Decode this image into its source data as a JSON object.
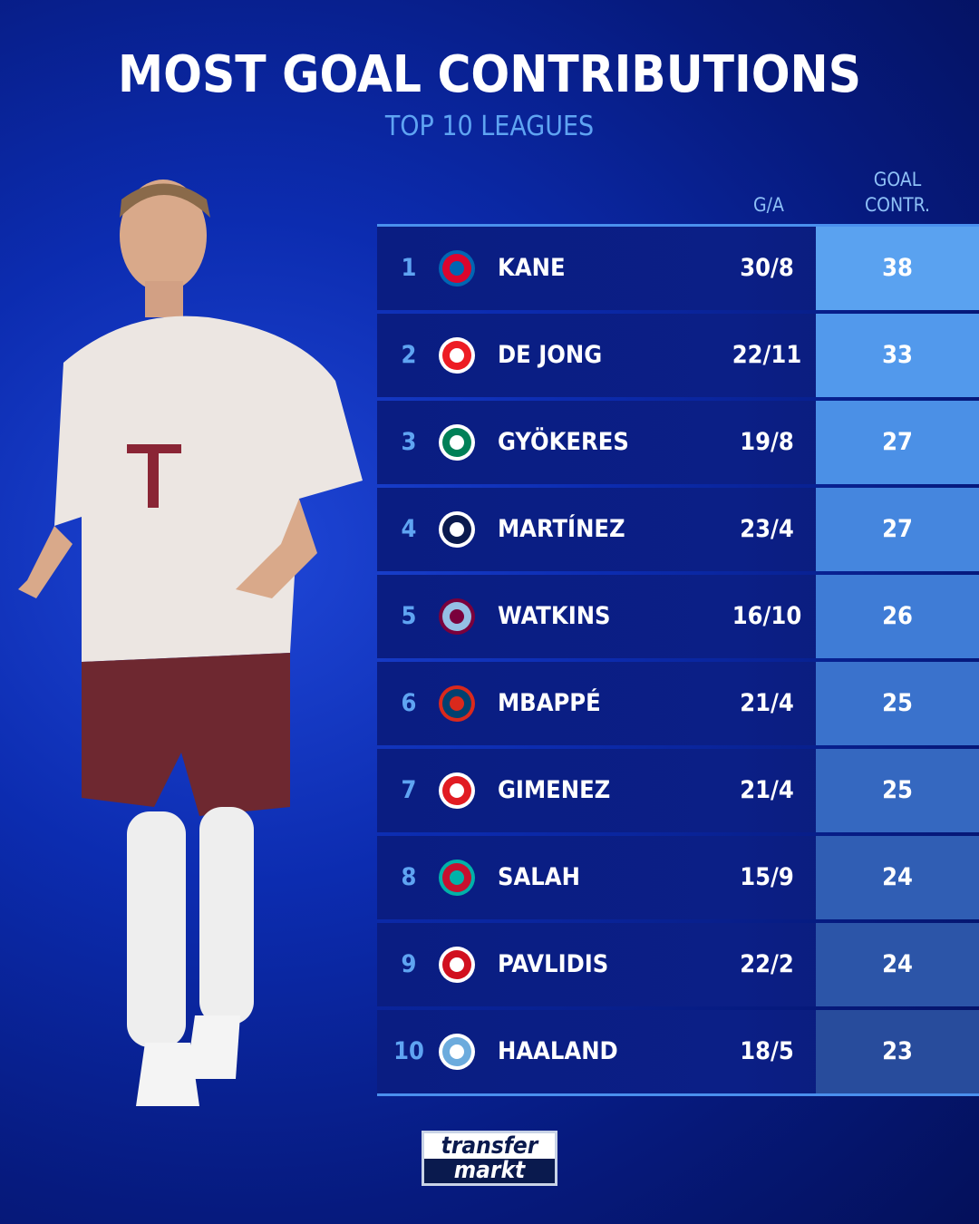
{
  "header": {
    "title": "MOST GOAL CONTRIBUTIONS",
    "subtitle": "TOP 10 LEAGUES"
  },
  "columns": {
    "ga": "G/A",
    "goal_contr_line1": "GOAL",
    "goal_contr_line2": "CONTR."
  },
  "chart_data": {
    "type": "table",
    "title": "MOST GOAL CONTRIBUTIONS",
    "subtitle": "TOP 10 LEAGUES",
    "columns": [
      "G/A",
      "GOAL CONTR."
    ],
    "rows": [
      {
        "rank": "1",
        "club_logo": "bayern-munich-crest",
        "name": "KANE",
        "ga": "30/8",
        "contr": "38",
        "color": "#5aa2f0"
      },
      {
        "rank": "2",
        "club_logo": "psv-crest",
        "name": "DE JONG",
        "ga": "22/11",
        "contr": "33",
        "color": "#5299ec"
      },
      {
        "rank": "3",
        "club_logo": "sporting-cp-crest",
        "name": "GYÖKERES",
        "ga": "19/8",
        "contr": "27",
        "color": "#4b90e6"
      },
      {
        "rank": "4",
        "club_logo": "inter-milan-crest",
        "name": "MARTÍNEZ",
        "ga": "23/4",
        "contr": "27",
        "color": "#4586de"
      },
      {
        "rank": "5",
        "club_logo": "aston-villa-crest",
        "name": "WATKINS",
        "ga": "16/10",
        "contr": "26",
        "color": "#3f7cd6"
      },
      {
        "rank": "6",
        "club_logo": "psg-crest",
        "name": "MBAPPÉ",
        "ga": "21/4",
        "contr": "25",
        "color": "#3a72cc"
      },
      {
        "rank": "7",
        "club_logo": "feyenoord-crest",
        "name": "GIMENEZ",
        "ga": "21/4",
        "contr": "25",
        "color": "#3568c0"
      },
      {
        "rank": "8",
        "club_logo": "liverpool-crest",
        "name": "SALAH",
        "ga": "15/9",
        "contr": "24",
        "color": "#305eb4"
      },
      {
        "rank": "9",
        "club_logo": "az-alkmaar-crest",
        "name": "PAVLIDIS",
        "ga": "22/2",
        "contr": "24",
        "color": "#2c55a8"
      },
      {
        "rank": "10",
        "club_logo": "manchester-city-crest",
        "name": "HAALAND",
        "ga": "18/5",
        "contr": "23",
        "color": "#284c9c"
      }
    ]
  },
  "brand": {
    "line1": "transfer",
    "line2": "markt"
  }
}
